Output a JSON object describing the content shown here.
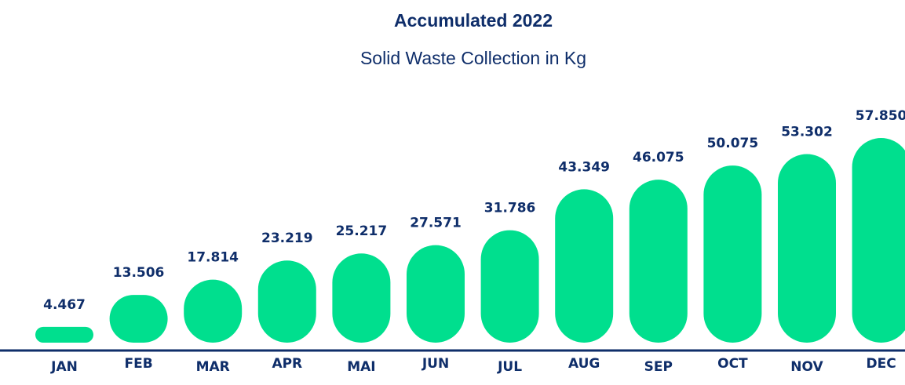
{
  "chart_data": {
    "type": "bar",
    "title": "Accumulated 2022",
    "subtitle": "Solid Waste Collection in Kg",
    "categories": [
      "JAN",
      "FEB",
      "MAR",
      "APR",
      "MAI",
      "JUN",
      "JUL",
      "AUG",
      "SEP",
      "OCT",
      "NOV",
      "DEC"
    ],
    "values": [
      4467,
      13506,
      17814,
      23219,
      25217,
      27571,
      31786,
      43349,
      46075,
      50075,
      53302,
      57850
    ],
    "value_labels": [
      "4.467",
      "13.506",
      "17.814",
      "23.219",
      "25.217",
      "27.571",
      "31.786",
      "43.349",
      "46.075",
      "50.075",
      "53.302",
      "57.850"
    ],
    "color": "#00df8e"
  }
}
